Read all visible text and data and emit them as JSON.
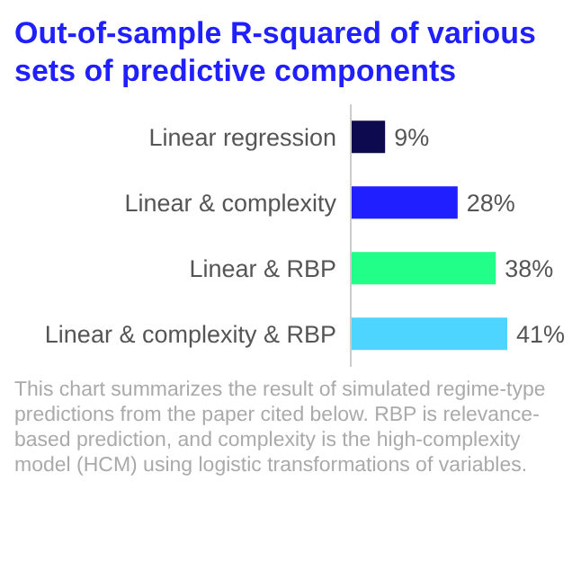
{
  "chart_data": {
    "type": "bar",
    "orientation": "horizontal",
    "title": "Out-of-sample R-squared of various sets of predictive components",
    "categories": [
      "Linear regression",
      "Linear & complexity",
      "Linear & RBP",
      "Linear & complexity & RBP"
    ],
    "values": [
      9,
      28,
      38,
      41
    ],
    "colors": [
      "#0d0a4f",
      "#1f1fff",
      "#22ff88",
      "#4dd4ff"
    ],
    "value_labels": [
      "9%",
      "28%",
      "38%",
      "41%"
    ],
    "tick_labels": "y",
    "annotations": [
      "This chart summarizes the result of simulated regime-type predictions from the paper cited below. RBP is relevance-based prediction, and complexity is the high-complexity model (HCM) using logistic transformations of variables."
    ]
  }
}
